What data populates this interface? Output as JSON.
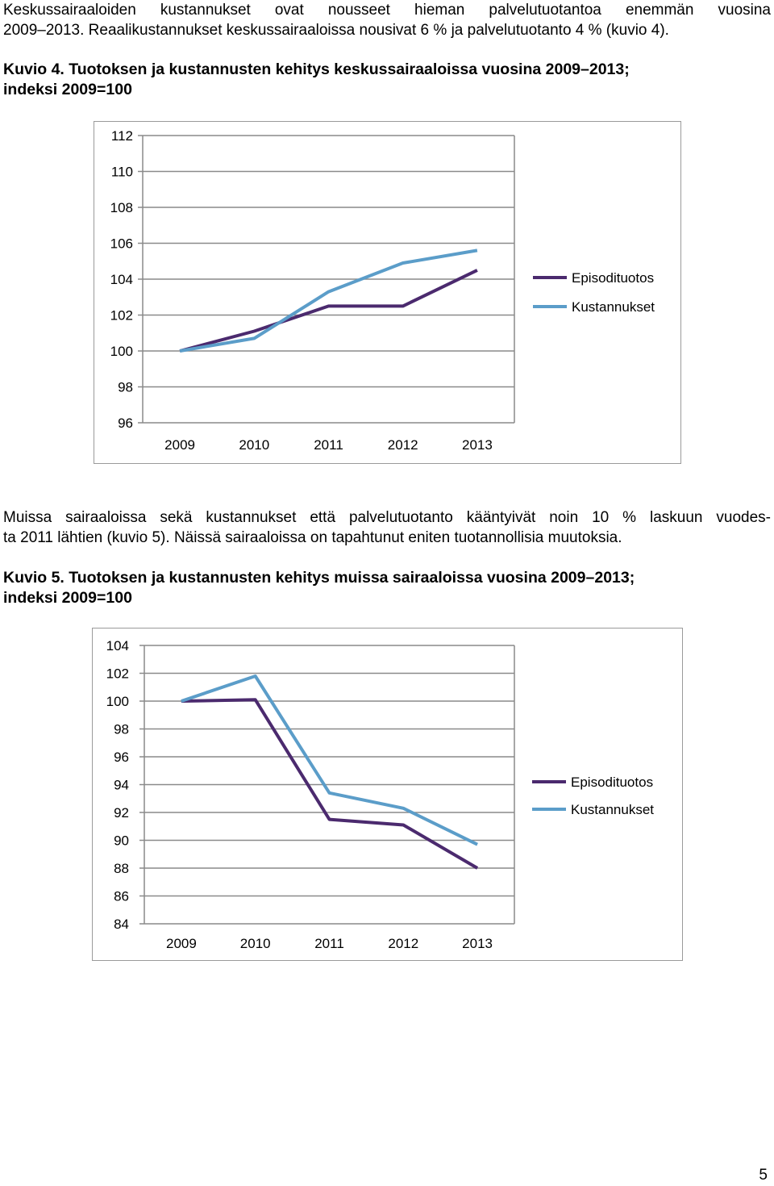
{
  "intro": {
    "line1": "Keskussairaaloiden kustannukset ovat nousseet hieman palvelutuotantoa enemmän vuosina",
    "line2": "2009–2013. Reaalikustannukset keskussairaaloissa nousivat 6 % ja palvelutuotanto 4 % (kuvio 4)."
  },
  "figure4": {
    "caption_line1": "Kuvio 4.  Tuotoksen ja kustannusten kehitys keskussairaaloissa vuosina 2009–2013;",
    "caption_line2": "indeksi 2009=100"
  },
  "middle": {
    "line1": "Muissa sairaaloissa sekä kustannukset että palvelutuotanto kääntyivät noin 10 % laskuun vuodes-",
    "line2": "ta 2011 lähtien (kuvio 5). Näissä sairaaloissa on tapahtunut eniten tuotannollisia muutoksia."
  },
  "figure5": {
    "caption_line1": "Kuvio 5. Tuotoksen ja kustannusten kehitys muissa sairaaloissa vuosina 2009–2013;",
    "caption_line2": "indeksi 2009=100"
  },
  "page_number": "5",
  "chart_data": [
    {
      "type": "line",
      "categories": [
        "2009",
        "2010",
        "2011",
        "2012",
        "2013"
      ],
      "ylim": [
        96,
        112
      ],
      "yticks": [
        "112",
        "110",
        "108",
        "106",
        "104",
        "102",
        "100",
        "98",
        "96"
      ],
      "series": [
        {
          "name": "Episodituotos",
          "color": "#4b2a6e",
          "values": [
            100.0,
            101.1,
            102.5,
            102.5,
            104.5
          ]
        },
        {
          "name": "Kustannukset",
          "color": "#5b9dc9",
          "values": [
            100.0,
            100.7,
            103.3,
            104.9,
            105.6
          ]
        }
      ],
      "legend_position": "right"
    },
    {
      "type": "line",
      "categories": [
        "2009",
        "2010",
        "2011",
        "2012",
        "2013"
      ],
      "ylim": [
        84,
        104
      ],
      "yticks": [
        "104",
        "102",
        "100",
        "98",
        "96",
        "94",
        "92",
        "90",
        "88",
        "86",
        "84"
      ],
      "series": [
        {
          "name": "Episodituotos",
          "color": "#4b2a6e",
          "values": [
            100.0,
            100.1,
            91.5,
            91.1,
            88.0
          ]
        },
        {
          "name": "Kustannukset",
          "color": "#5b9dc9",
          "values": [
            100.0,
            101.8,
            93.4,
            92.3,
            89.7
          ]
        }
      ],
      "legend_position": "right"
    }
  ]
}
